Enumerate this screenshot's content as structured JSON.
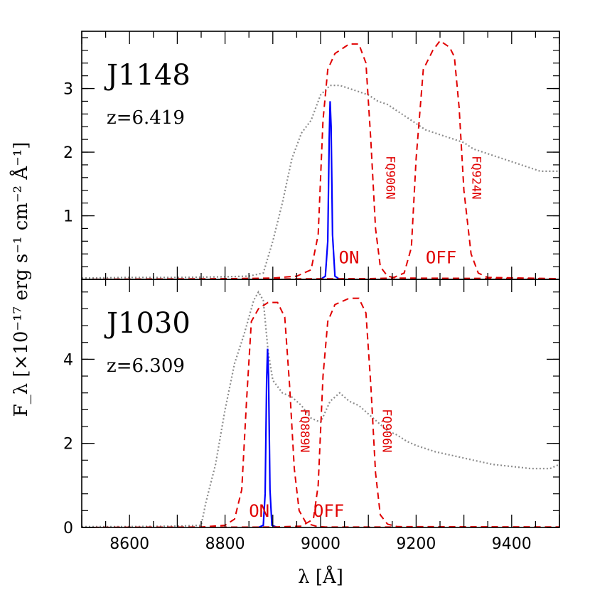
{
  "chart_data": [
    {
      "type": "line",
      "panel": "top",
      "title": "J1148",
      "subtitle": "z=6.419",
      "xlim": [
        8500,
        9500
      ],
      "ylim": [
        0,
        3.9
      ],
      "y_ticks": [
        0,
        1,
        2,
        3
      ],
      "y_tick_labels": [
        "0",
        "1",
        "2",
        "3"
      ],
      "series": [
        {
          "style": "dotted-gray",
          "x": [
            8500,
            8600,
            8700,
            8800,
            8850,
            8880,
            8900,
            8920,
            8940,
            8960,
            8980,
            9000,
            9020,
            9040,
            9060,
            9080,
            9100,
            9120,
            9140,
            9160,
            9180,
            9200,
            9220,
            9240,
            9260,
            9280,
            9300,
            9320,
            9340,
            9360,
            9380,
            9400,
            9420,
            9440,
            9460,
            9480,
            9500
          ],
          "y": [
            0.02,
            0.03,
            0.03,
            0.04,
            0.05,
            0.1,
            0.6,
            1.2,
            1.9,
            2.3,
            2.5,
            2.9,
            3.05,
            3.05,
            3.0,
            2.95,
            2.9,
            2.8,
            2.75,
            2.65,
            2.55,
            2.45,
            2.35,
            2.3,
            2.25,
            2.2,
            2.15,
            2.05,
            2.0,
            1.95,
            1.9,
            1.85,
            1.8,
            1.75,
            1.7,
            1.7,
            1.7
          ]
        },
        {
          "style": "solid-blue",
          "x": [
            9000,
            9010,
            9015,
            9018,
            9020,
            9022,
            9025,
            9030,
            9040
          ],
          "y": [
            0,
            0.05,
            0.6,
            2.2,
            2.8,
            2.4,
            0.7,
            0.05,
            0
          ]
        },
        {
          "style": "dashed-red",
          "name": "FQ906N",
          "x": [
            8500,
            8800,
            8900,
            8950,
            8980,
            8995,
            9005,
            9015,
            9030,
            9060,
            9080,
            9095,
            9105,
            9115,
            9125,
            9140,
            9160,
            9500
          ],
          "y": [
            0,
            0.01,
            0.02,
            0.05,
            0.15,
            0.7,
            2.5,
            3.3,
            3.55,
            3.7,
            3.7,
            3.4,
            2.2,
            0.8,
            0.2,
            0.05,
            0.02,
            0.01
          ]
        },
        {
          "style": "dashed-red",
          "name": "FQ924N",
          "x": [
            8500,
            9100,
            9150,
            9175,
            9190,
            9200,
            9215,
            9235,
            9250,
            9270,
            9280,
            9290,
            9300,
            9315,
            9330,
            9350,
            9500
          ],
          "y": [
            0,
            0.01,
            0.02,
            0.1,
            0.5,
            1.9,
            3.3,
            3.6,
            3.75,
            3.65,
            3.5,
            2.7,
            1.4,
            0.4,
            0.1,
            0.03,
            0.01
          ]
        }
      ],
      "annotations": [
        {
          "text": "ON",
          "x": 9038,
          "y": 0.25
        },
        {
          "text": "OFF",
          "x": 9220,
          "y": 0.25
        },
        {
          "text": "FQ906N",
          "x": 9138,
          "y": 1.6
        },
        {
          "text": "FQ924N",
          "x": 9318,
          "y": 1.6
        }
      ]
    },
    {
      "type": "line",
      "panel": "bottom",
      "title": "J1030",
      "subtitle": "z=6.309",
      "xlim": [
        8500,
        9500
      ],
      "ylim": [
        0,
        5.9
      ],
      "y_ticks": [
        0,
        2,
        4
      ],
      "y_tick_labels": [
        "0",
        "2",
        "4"
      ],
      "series": [
        {
          "style": "dotted-gray",
          "x": [
            8500,
            8600,
            8700,
            8750,
            8760,
            8780,
            8800,
            8820,
            8840,
            8860,
            8870,
            8880,
            8890,
            8900,
            8920,
            8940,
            8960,
            8980,
            9000,
            9020,
            9040,
            9060,
            9080,
            9100,
            9120,
            9140,
            9160,
            9180,
            9200,
            9240,
            9280,
            9320,
            9360,
            9400,
            9440,
            9480,
            9500
          ],
          "y": [
            0.02,
            0.02,
            0.03,
            0.05,
            0.6,
            1.5,
            2.8,
            3.9,
            4.6,
            5.4,
            5.6,
            5.4,
            4.2,
            3.5,
            3.2,
            3.1,
            2.9,
            2.6,
            2.5,
            3.0,
            3.2,
            3.0,
            2.9,
            2.7,
            2.5,
            2.3,
            2.2,
            2.05,
            1.95,
            1.8,
            1.7,
            1.6,
            1.5,
            1.45,
            1.4,
            1.4,
            1.5
          ]
        },
        {
          "style": "solid-blue",
          "x": [
            8870,
            8880,
            8884,
            8887,
            8889,
            8891,
            8894,
            8898,
            8910
          ],
          "y": [
            0,
            0.05,
            0.8,
            3.5,
            4.25,
            3.6,
            0.9,
            0.05,
            0
          ]
        },
        {
          "style": "dashed-red",
          "name": "FQ889N",
          "x": [
            8500,
            8750,
            8800,
            8820,
            8835,
            8845,
            8855,
            8870,
            8890,
            8910,
            8925,
            8935,
            8945,
            8955,
            8970,
            8990,
            9010,
            9500
          ],
          "y": [
            0,
            0.01,
            0.05,
            0.2,
            0.9,
            3.0,
            4.9,
            5.2,
            5.35,
            5.35,
            5.0,
            3.4,
            1.4,
            0.4,
            0.1,
            0.03,
            0.01,
            0.01
          ]
        },
        {
          "style": "dashed-red",
          "name": "FQ906N",
          "x": [
            8500,
            8900,
            8960,
            8985,
            8995,
            9005,
            9015,
            9030,
            9060,
            9080,
            9095,
            9105,
            9115,
            9125,
            9140,
            9160,
            9500
          ],
          "y": [
            0,
            0.01,
            0.03,
            0.2,
            1.0,
            3.6,
            4.9,
            5.3,
            5.45,
            5.45,
            5.1,
            3.4,
            1.3,
            0.3,
            0.08,
            0.02,
            0.01
          ]
        }
      ],
      "annotations": [
        {
          "text": "ON",
          "x": 8850,
          "y": 0.25
        },
        {
          "text": "OFF",
          "x": 8985,
          "y": 0.25
        },
        {
          "text": "FQ889N",
          "x": 8958,
          "y": 2.3
        },
        {
          "text": "FQ906N",
          "x": 9130,
          "y": 2.3
        }
      ]
    }
  ],
  "axes": {
    "xlabel": "λ [Å]",
    "ylabel": "F_λ [×10⁻¹⁷ erg s⁻¹ cm⁻² Å⁻¹]",
    "x_ticks": [
      8600,
      8800,
      9000,
      9200,
      9400
    ],
    "x_tick_labels": [
      "8600",
      "8800",
      "9000",
      "9200",
      "9400"
    ]
  },
  "colors": {
    "spectrum": "#8c8c8c",
    "line": "#0000ff",
    "filter": "#e00000"
  }
}
